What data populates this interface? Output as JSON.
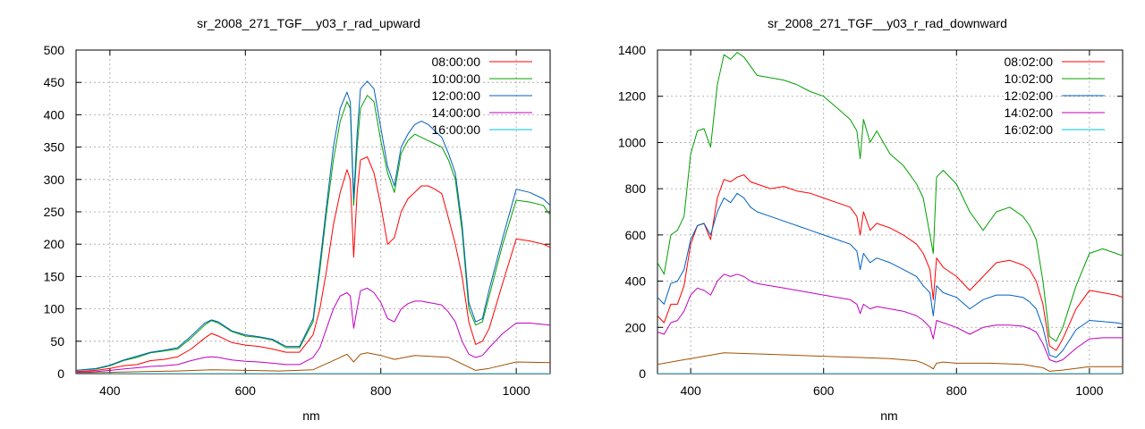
{
  "chart_data": [
    {
      "type": "line",
      "title": "sr_2008_271_TGF__y03_r_rad_upward",
      "xlabel": "nm",
      "ylabel": "",
      "xlim": [
        350,
        1050
      ],
      "ylim": [
        0,
        500
      ],
      "xticks": [
        400,
        600,
        800,
        1000
      ],
      "yticks": [
        0,
        50,
        100,
        150,
        200,
        250,
        300,
        350,
        400,
        450,
        500
      ],
      "grid": true,
      "legend_position": "top-right",
      "series": [
        {
          "name": "08:00:00",
          "color": "#ff0000",
          "x": [
            350,
            380,
            400,
            420,
            440,
            460,
            480,
            500,
            520,
            540,
            550,
            560,
            580,
            600,
            620,
            640,
            660,
            680,
            700,
            710,
            720,
            730,
            740,
            750,
            755,
            760,
            765,
            770,
            780,
            790,
            800,
            810,
            820,
            830,
            840,
            850,
            860,
            870,
            880,
            890,
            900,
            910,
            920,
            930,
            940,
            950,
            960,
            980,
            1000,
            1020,
            1040,
            1050
          ],
          "y": [
            3,
            5,
            8,
            12,
            14,
            20,
            22,
            26,
            38,
            55,
            62,
            58,
            48,
            44,
            42,
            38,
            33,
            33,
            60,
            100,
            160,
            230,
            280,
            315,
            300,
            180,
            280,
            330,
            335,
            310,
            260,
            200,
            210,
            250,
            270,
            280,
            290,
            290,
            285,
            278,
            240,
            200,
            150,
            80,
            45,
            50,
            70,
            140,
            208,
            205,
            200,
            195
          ]
        },
        {
          "name": "10:00:00",
          "color": "#00a000",
          "x": [
            350,
            380,
            400,
            420,
            440,
            460,
            480,
            500,
            520,
            540,
            550,
            560,
            580,
            600,
            620,
            640,
            660,
            680,
            700,
            710,
            720,
            730,
            740,
            750,
            755,
            760,
            765,
            770,
            780,
            790,
            800,
            810,
            820,
            830,
            840,
            850,
            860,
            870,
            880,
            890,
            900,
            910,
            920,
            930,
            940,
            950,
            960,
            980,
            1000,
            1020,
            1040,
            1050
          ],
          "y": [
            5,
            7,
            12,
            20,
            25,
            32,
            35,
            38,
            55,
            75,
            82,
            78,
            65,
            58,
            56,
            52,
            40,
            40,
            80,
            160,
            250,
            330,
            390,
            420,
            410,
            260,
            350,
            410,
            430,
            420,
            360,
            310,
            280,
            340,
            360,
            370,
            365,
            360,
            355,
            350,
            330,
            300,
            220,
            100,
            75,
            80,
            120,
            200,
            268,
            265,
            260,
            245
          ]
        },
        {
          "name": "12:00:00",
          "color": "#0060c0",
          "x": [
            350,
            380,
            400,
            420,
            440,
            460,
            480,
            500,
            520,
            540,
            550,
            560,
            580,
            600,
            620,
            640,
            660,
            680,
            700,
            710,
            720,
            730,
            740,
            750,
            755,
            760,
            765,
            770,
            780,
            790,
            800,
            810,
            820,
            830,
            840,
            850,
            860,
            870,
            880,
            890,
            900,
            910,
            920,
            930,
            940,
            950,
            960,
            980,
            1000,
            1020,
            1040,
            1050
          ],
          "y": [
            5,
            8,
            13,
            21,
            27,
            33,
            36,
            40,
            58,
            78,
            83,
            80,
            66,
            60,
            57,
            53,
            42,
            42,
            85,
            170,
            260,
            350,
            410,
            435,
            420,
            270,
            370,
            440,
            452,
            440,
            380,
            320,
            290,
            350,
            370,
            385,
            390,
            385,
            375,
            365,
            340,
            310,
            230,
            110,
            80,
            85,
            130,
            210,
            285,
            280,
            270,
            260
          ]
        },
        {
          "name": "14:00:00",
          "color": "#c000c0",
          "x": [
            350,
            380,
            400,
            420,
            440,
            460,
            480,
            500,
            520,
            540,
            550,
            560,
            580,
            600,
            620,
            640,
            660,
            680,
            700,
            710,
            720,
            730,
            740,
            750,
            755,
            760,
            765,
            770,
            780,
            790,
            800,
            810,
            820,
            830,
            840,
            850,
            860,
            870,
            880,
            890,
            900,
            910,
            920,
            930,
            940,
            950,
            960,
            980,
            1000,
            1020,
            1040,
            1050
          ],
          "y": [
            2,
            3,
            5,
            7,
            9,
            11,
            12,
            14,
            20,
            25,
            26,
            25,
            21,
            19,
            18,
            16,
            14,
            14,
            25,
            40,
            70,
            100,
            120,
            125,
            120,
            70,
            100,
            128,
            132,
            125,
            110,
            85,
            80,
            100,
            108,
            112,
            112,
            110,
            108,
            106,
            95,
            80,
            50,
            30,
            25,
            28,
            40,
            62,
            78,
            78,
            76,
            75
          ]
        },
        {
          "name": "16:00:00",
          "color": "#00c0e0",
          "x": [
            350,
            1050
          ],
          "y": [
            0,
            0
          ]
        },
        {
          "name": "",
          "color": "#a05000",
          "x": [
            350,
            400,
            450,
            500,
            550,
            600,
            650,
            700,
            740,
            750,
            760,
            770,
            780,
            800,
            820,
            850,
            900,
            940,
            960,
            1000,
            1050
          ],
          "y": [
            1,
            2,
            3,
            4,
            6,
            5,
            4,
            6,
            25,
            30,
            18,
            30,
            32,
            28,
            22,
            28,
            25,
            5,
            8,
            18,
            17
          ]
        }
      ]
    },
    {
      "type": "line",
      "title": "sr_2008_271_TGF__y03_r_rad_downward",
      "xlabel": "nm",
      "ylabel": "",
      "xlim": [
        350,
        1050
      ],
      "ylim": [
        0,
        1400
      ],
      "xticks": [
        400,
        600,
        800,
        1000
      ],
      "yticks": [
        0,
        200,
        400,
        600,
        800,
        1000,
        1200,
        1400
      ],
      "grid": true,
      "legend_position": "top-right",
      "series": [
        {
          "name": "08:02:00",
          "color": "#ff0000",
          "x": [
            350,
            360,
            370,
            380,
            390,
            400,
            410,
            420,
            430,
            440,
            450,
            460,
            470,
            480,
            490,
            500,
            520,
            540,
            560,
            580,
            600,
            620,
            640,
            650,
            655,
            660,
            670,
            680,
            700,
            720,
            740,
            750,
            760,
            765,
            770,
            780,
            800,
            820,
            840,
            860,
            880,
            900,
            910,
            920,
            930,
            940,
            950,
            960,
            980,
            1000,
            1020,
            1040,
            1050
          ],
          "y": [
            250,
            220,
            300,
            300,
            380,
            560,
            640,
            650,
            580,
            760,
            840,
            830,
            850,
            860,
            830,
            820,
            800,
            810,
            790,
            780,
            760,
            740,
            720,
            680,
            600,
            700,
            620,
            650,
            630,
            600,
            560,
            520,
            450,
            320,
            500,
            460,
            420,
            360,
            420,
            480,
            490,
            470,
            450,
            400,
            300,
            120,
            100,
            150,
            280,
            360,
            350,
            340,
            330
          ]
        },
        {
          "name": "10:02:00",
          "color": "#00a000",
          "x": [
            350,
            360,
            370,
            380,
            390,
            400,
            410,
            420,
            430,
            440,
            450,
            460,
            470,
            480,
            490,
            500,
            520,
            540,
            560,
            580,
            600,
            620,
            640,
            650,
            655,
            660,
            670,
            680,
            700,
            720,
            740,
            750,
            760,
            765,
            770,
            780,
            800,
            820,
            840,
            860,
            880,
            900,
            910,
            920,
            930,
            940,
            950,
            960,
            980,
            1000,
            1020,
            1040,
            1050
          ],
          "y": [
            480,
            430,
            600,
            620,
            680,
            950,
            1050,
            1060,
            980,
            1250,
            1380,
            1360,
            1390,
            1370,
            1330,
            1290,
            1280,
            1270,
            1250,
            1220,
            1200,
            1150,
            1100,
            1050,
            930,
            1100,
            1000,
            1050,
            950,
            900,
            820,
            760,
            600,
            520,
            850,
            880,
            820,
            700,
            620,
            700,
            720,
            680,
            640,
            580,
            400,
            160,
            140,
            200,
            380,
            520,
            540,
            520,
            510
          ]
        },
        {
          "name": "12:02:00",
          "color": "#0060c0",
          "x": [
            350,
            360,
            370,
            380,
            390,
            400,
            410,
            420,
            430,
            440,
            450,
            460,
            470,
            480,
            490,
            500,
            520,
            540,
            560,
            580,
            600,
            620,
            640,
            650,
            655,
            660,
            670,
            680,
            700,
            720,
            740,
            750,
            760,
            765,
            770,
            780,
            800,
            820,
            840,
            860,
            880,
            900,
            910,
            920,
            930,
            940,
            950,
            960,
            980,
            1000,
            1020,
            1040,
            1050
          ],
          "y": [
            330,
            300,
            390,
            400,
            450,
            580,
            640,
            650,
            600,
            700,
            760,
            740,
            780,
            760,
            720,
            700,
            680,
            660,
            640,
            620,
            600,
            580,
            560,
            530,
            450,
            520,
            480,
            500,
            480,
            450,
            420,
            380,
            350,
            250,
            380,
            350,
            330,
            280,
            320,
            340,
            340,
            330,
            310,
            280,
            200,
            80,
            70,
            100,
            190,
            230,
            225,
            220,
            215
          ]
        },
        {
          "name": "14:02:00",
          "color": "#c000c0",
          "x": [
            350,
            360,
            370,
            380,
            390,
            400,
            410,
            420,
            430,
            440,
            450,
            460,
            470,
            480,
            490,
            500,
            520,
            540,
            560,
            580,
            600,
            620,
            640,
            650,
            655,
            660,
            670,
            680,
            700,
            720,
            740,
            750,
            760,
            765,
            770,
            780,
            800,
            820,
            840,
            860,
            880,
            900,
            910,
            920,
            930,
            940,
            950,
            960,
            980,
            1000,
            1020,
            1040,
            1050
          ],
          "y": [
            180,
            170,
            220,
            230,
            270,
            340,
            370,
            360,
            340,
            400,
            430,
            420,
            430,
            420,
            400,
            390,
            380,
            370,
            360,
            350,
            340,
            330,
            320,
            300,
            260,
            300,
            280,
            290,
            280,
            270,
            250,
            230,
            200,
            150,
            230,
            220,
            200,
            170,
            200,
            210,
            210,
            205,
            195,
            180,
            130,
            60,
            50,
            60,
            110,
            150,
            155,
            155,
            155
          ]
        },
        {
          "name": "16:02:00",
          "color": "#00c0e0",
          "x": [
            350,
            1050
          ],
          "y": [
            0,
            0
          ]
        },
        {
          "name": "",
          "color": "#a05000",
          "x": [
            350,
            400,
            450,
            500,
            550,
            600,
            650,
            700,
            740,
            750,
            760,
            765,
            770,
            780,
            800,
            850,
            900,
            930,
            940,
            960,
            1000,
            1050
          ],
          "y": [
            40,
            65,
            90,
            85,
            80,
            75,
            70,
            65,
            55,
            45,
            30,
            20,
            45,
            50,
            45,
            45,
            40,
            25,
            10,
            15,
            30,
            30
          ]
        }
      ]
    }
  ]
}
